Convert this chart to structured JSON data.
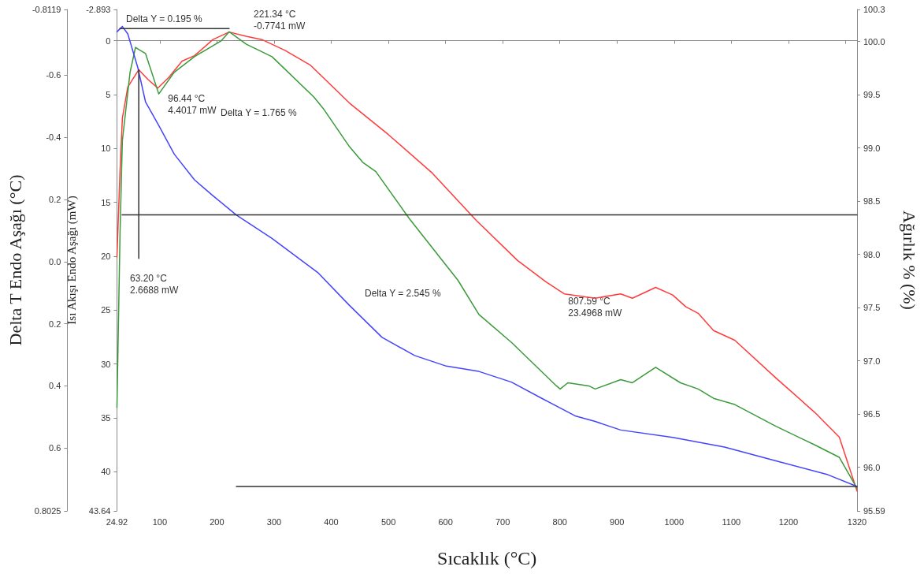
{
  "chart_data": {
    "type": "line",
    "xlabel": "Sıcaklık (°C)",
    "ylabel": "Isı Akışı Endo Aşağı (mW)",
    "y2label": "Ağırlık % (%)",
    "y3label": "Delta T Endo Aşağı (°C)",
    "xlim": [
      24.92,
      1320
    ],
    "xticks": [
      24.92,
      100,
      200,
      300,
      400,
      500,
      600,
      700,
      800,
      900,
      1000,
      1100,
      1200,
      {
        "value": 1300,
        "label": null
      },
      1320
    ],
    "ylim": [
      43.64,
      -2.893
    ],
    "yticks": [
      -2.893,
      0,
      5,
      10,
      15,
      20,
      25,
      30,
      35,
      40,
      43.64
    ],
    "y2lim": [
      95.59,
      100.3
    ],
    "y2ticks": [
      95.59,
      {
        "value": 96,
        "label": "96.0"
      },
      96.5,
      {
        "value": 97,
        "label": "97.0"
      },
      97.5,
      {
        "value": 98,
        "label": "98.0"
      },
      98.5,
      {
        "value": 99,
        "label": "99.0"
      },
      99.5,
      {
        "value": 100,
        "label": "100.0"
      },
      100.3
    ],
    "y3lim": [
      0.8025,
      -0.8119
    ],
    "y3ticks": [
      -0.8119,
      -0.6,
      -0.4,
      {
        "value": -0.2,
        "label": "0.2"
      },
      {
        "value": 0,
        "label": "0.0"
      },
      0.2,
      0.4,
      0.6,
      0.8025
    ],
    "series": [
      {
        "color": "#ff3b3b",
        "x": [
          25,
          30.4,
          34.5,
          44,
          63.2,
          79.2,
          96.44,
          115.9,
          139,
          160.6,
          193,
          221.34,
          251,
          278.6,
          319,
          364,
          432,
          499.5,
          577,
          654,
          726,
          776,
          807.59,
          861.8,
          906.5,
          926.9,
          967.6,
          997.4,
          1020.5,
          1042,
          1069,
          1106,
          1178,
          1246,
          1289,
          1320
        ],
        "values": [
          20.1,
          12.1,
          7.2,
          4.3,
          2.7,
          3.6,
          4.4,
          3.4,
          1.9,
          1.4,
          -0.1,
          -0.8,
          -0.4,
          -0.1,
          0.9,
          2.3,
          5.8,
          8.7,
          12.3,
          16.7,
          20.4,
          22.4,
          23.5,
          23.9,
          23.5,
          23.9,
          22.9,
          23.6,
          24.7,
          25.3,
          26.9,
          27.8,
          31.3,
          34.5,
          36.8,
          41.8
        ]
      },
      {
        "color": "#3a9a3a",
        "axis": "y3",
        "x": [
          25,
          30.4,
          34.5,
          48,
          57.5,
          65.6,
          75.1,
          98.2,
          125.4,
          160.6,
          206.7,
          221.6,
          251.5,
          296.3,
          369.5,
          387.2,
          431.9,
          455,
          478,
          536,
          621.7,
          658.4,
          715.3,
          794,
          800.6,
          814,
          850.7,
          861.8,
          906.5,
          926.9,
          967.6,
          1011,
          1042,
          1069,
          1106,
          1178,
          1246,
          1289,
          1320
        ],
        "values": [
          0.47,
          -0.09,
          -0.39,
          -0.61,
          -0.69,
          -0.68,
          -0.67,
          -0.54,
          -0.61,
          -0.66,
          -0.71,
          -0.74,
          -0.7,
          -0.66,
          -0.53,
          -0.49,
          -0.37,
          -0.32,
          -0.29,
          -0.14,
          0.06,
          0.17,
          0.26,
          0.4,
          0.41,
          0.39,
          0.4,
          0.41,
          0.38,
          0.39,
          0.34,
          0.39,
          0.41,
          0.44,
          0.46,
          0.53,
          0.59,
          0.63,
          0.73
        ]
      },
      {
        "color": "#4444ff",
        "axis": "y2",
        "x": [
          25,
          34.5,
          44,
          61.7,
          75.1,
          98.2,
          125.4,
          160.6,
          193.2,
          233.8,
          296.3,
          376.3,
          431.9,
          488.9,
          545.8,
          601.4,
          658.4,
          715.3,
          771,
          828,
          861.8,
          906.5,
          997.4,
          1088,
          1178,
          1269,
          1320
        ],
        "values": [
          100.09,
          100.14,
          100.07,
          99.75,
          99.43,
          99.21,
          98.94,
          98.7,
          98.55,
          98.37,
          98.15,
          97.83,
          97.52,
          97.22,
          97.05,
          96.95,
          96.9,
          96.8,
          96.64,
          96.48,
          96.43,
          96.35,
          96.28,
          96.19,
          96.06,
          95.93,
          95.82
        ]
      },
      {
        "color": "#333333",
        "axis": "y2",
        "x": [
          30,
          221.34
        ],
        "values": [
          100.12,
          100.12
        ]
      },
      {
        "color": "#333333",
        "axis": "y2",
        "x": [
          34,
          1320
        ],
        "values": [
          98.37,
          98.37
        ]
      },
      {
        "color": "#333333",
        "axis": "y2",
        "x": [
          234,
          1320
        ],
        "values": [
          95.82,
          95.82
        ]
      },
      {
        "color": "#333333",
        "x": [
          63.2,
          63.2
        ],
        "values": [
          2.7,
          20.2
        ]
      }
    ],
    "annotations": [
      "221.34 °C\n-0.7741 mW",
      {
        "text": "96.44 °C\n4.4017 mW",
        "x": 96.44,
        "y": 4.4
      },
      "63.20 °C\n2.6688 mW",
      {
        "text": "807.59 °C\n23.4968 mW",
        "x": 807.59,
        "y": 23.5
      },
      "Delta Y = 0.195 %",
      "Delta Y = 1.765 %",
      "Delta Y = 2.545 %"
    ]
  }
}
